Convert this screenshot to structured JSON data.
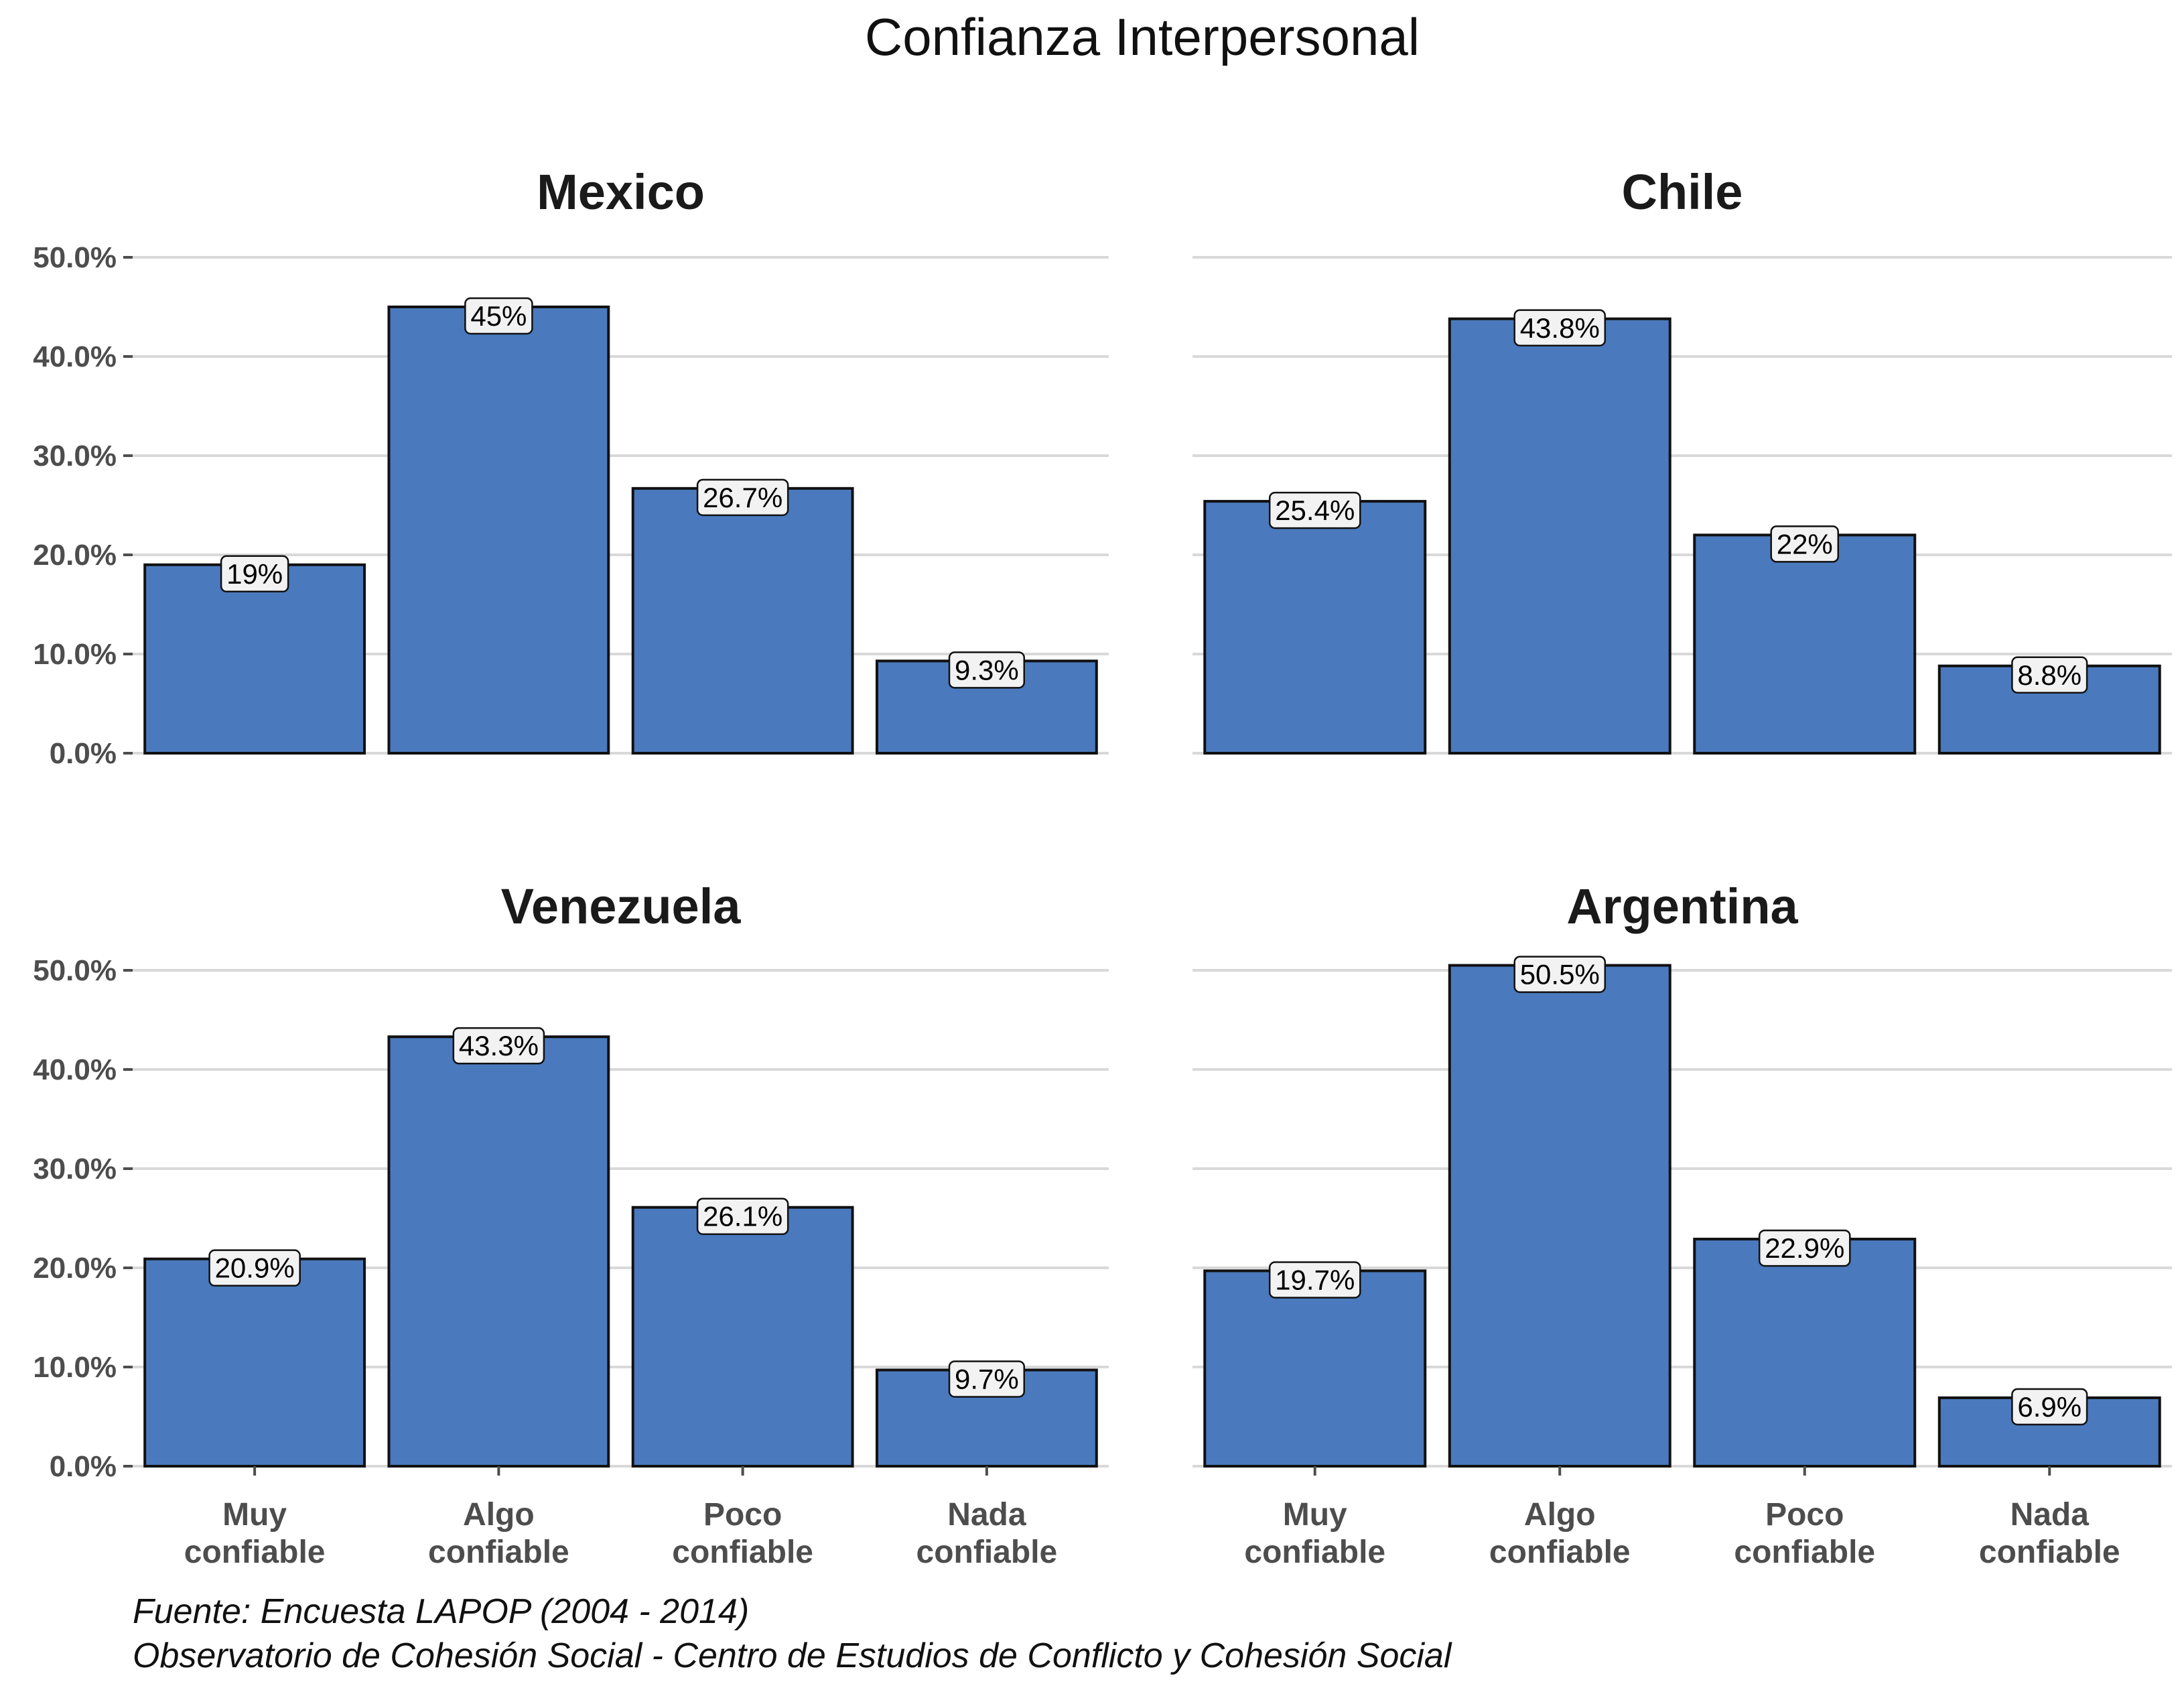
{
  "chart_data": {
    "type": "bar",
    "title": "Confianza Interpersonal",
    "categories": [
      "Muy confiable",
      "Algo confiable",
      "Poco confiable",
      "Nada confiable"
    ],
    "category_lines": [
      [
        "Muy",
        "confiable"
      ],
      [
        "Algo",
        "confiable"
      ],
      [
        "Poco",
        "confiable"
      ],
      [
        "Nada",
        "confiable"
      ]
    ],
    "ylim": [
      0,
      50
    ],
    "yticks": [
      0,
      10,
      20,
      30,
      40,
      50
    ],
    "ytick_labels": [
      "0.0%",
      "10.0%",
      "20.0%",
      "30.0%",
      "40.0%",
      "50.0%"
    ],
    "grid": true,
    "bar_color": "#4a7abd",
    "panels": [
      {
        "title": "Mexico",
        "values": [
          19,
          45,
          26.7,
          9.3
        ],
        "labels": [
          "19%",
          "45%",
          "26.7%",
          "9.3%"
        ]
      },
      {
        "title": "Chile",
        "values": [
          25.4,
          43.8,
          22,
          8.8
        ],
        "labels": [
          "25.4%",
          "43.8%",
          "22%",
          "8.8%"
        ]
      },
      {
        "title": "Venezuela",
        "values": [
          20.9,
          43.3,
          26.1,
          9.7
        ],
        "labels": [
          "20.9%",
          "43.3%",
          "26.1%",
          "9.7%"
        ]
      },
      {
        "title": "Argentina",
        "values": [
          19.7,
          50.5,
          22.9,
          6.9
        ],
        "labels": [
          "19.7%",
          "50.5%",
          "22.9%",
          "6.9%"
        ]
      }
    ],
    "caption": [
      "Fuente: Encuesta LAPOP (2004 - 2014)",
      "Observatorio de Cohesión Social - Centro de Estudios de Conflicto y Cohesión Social"
    ]
  }
}
